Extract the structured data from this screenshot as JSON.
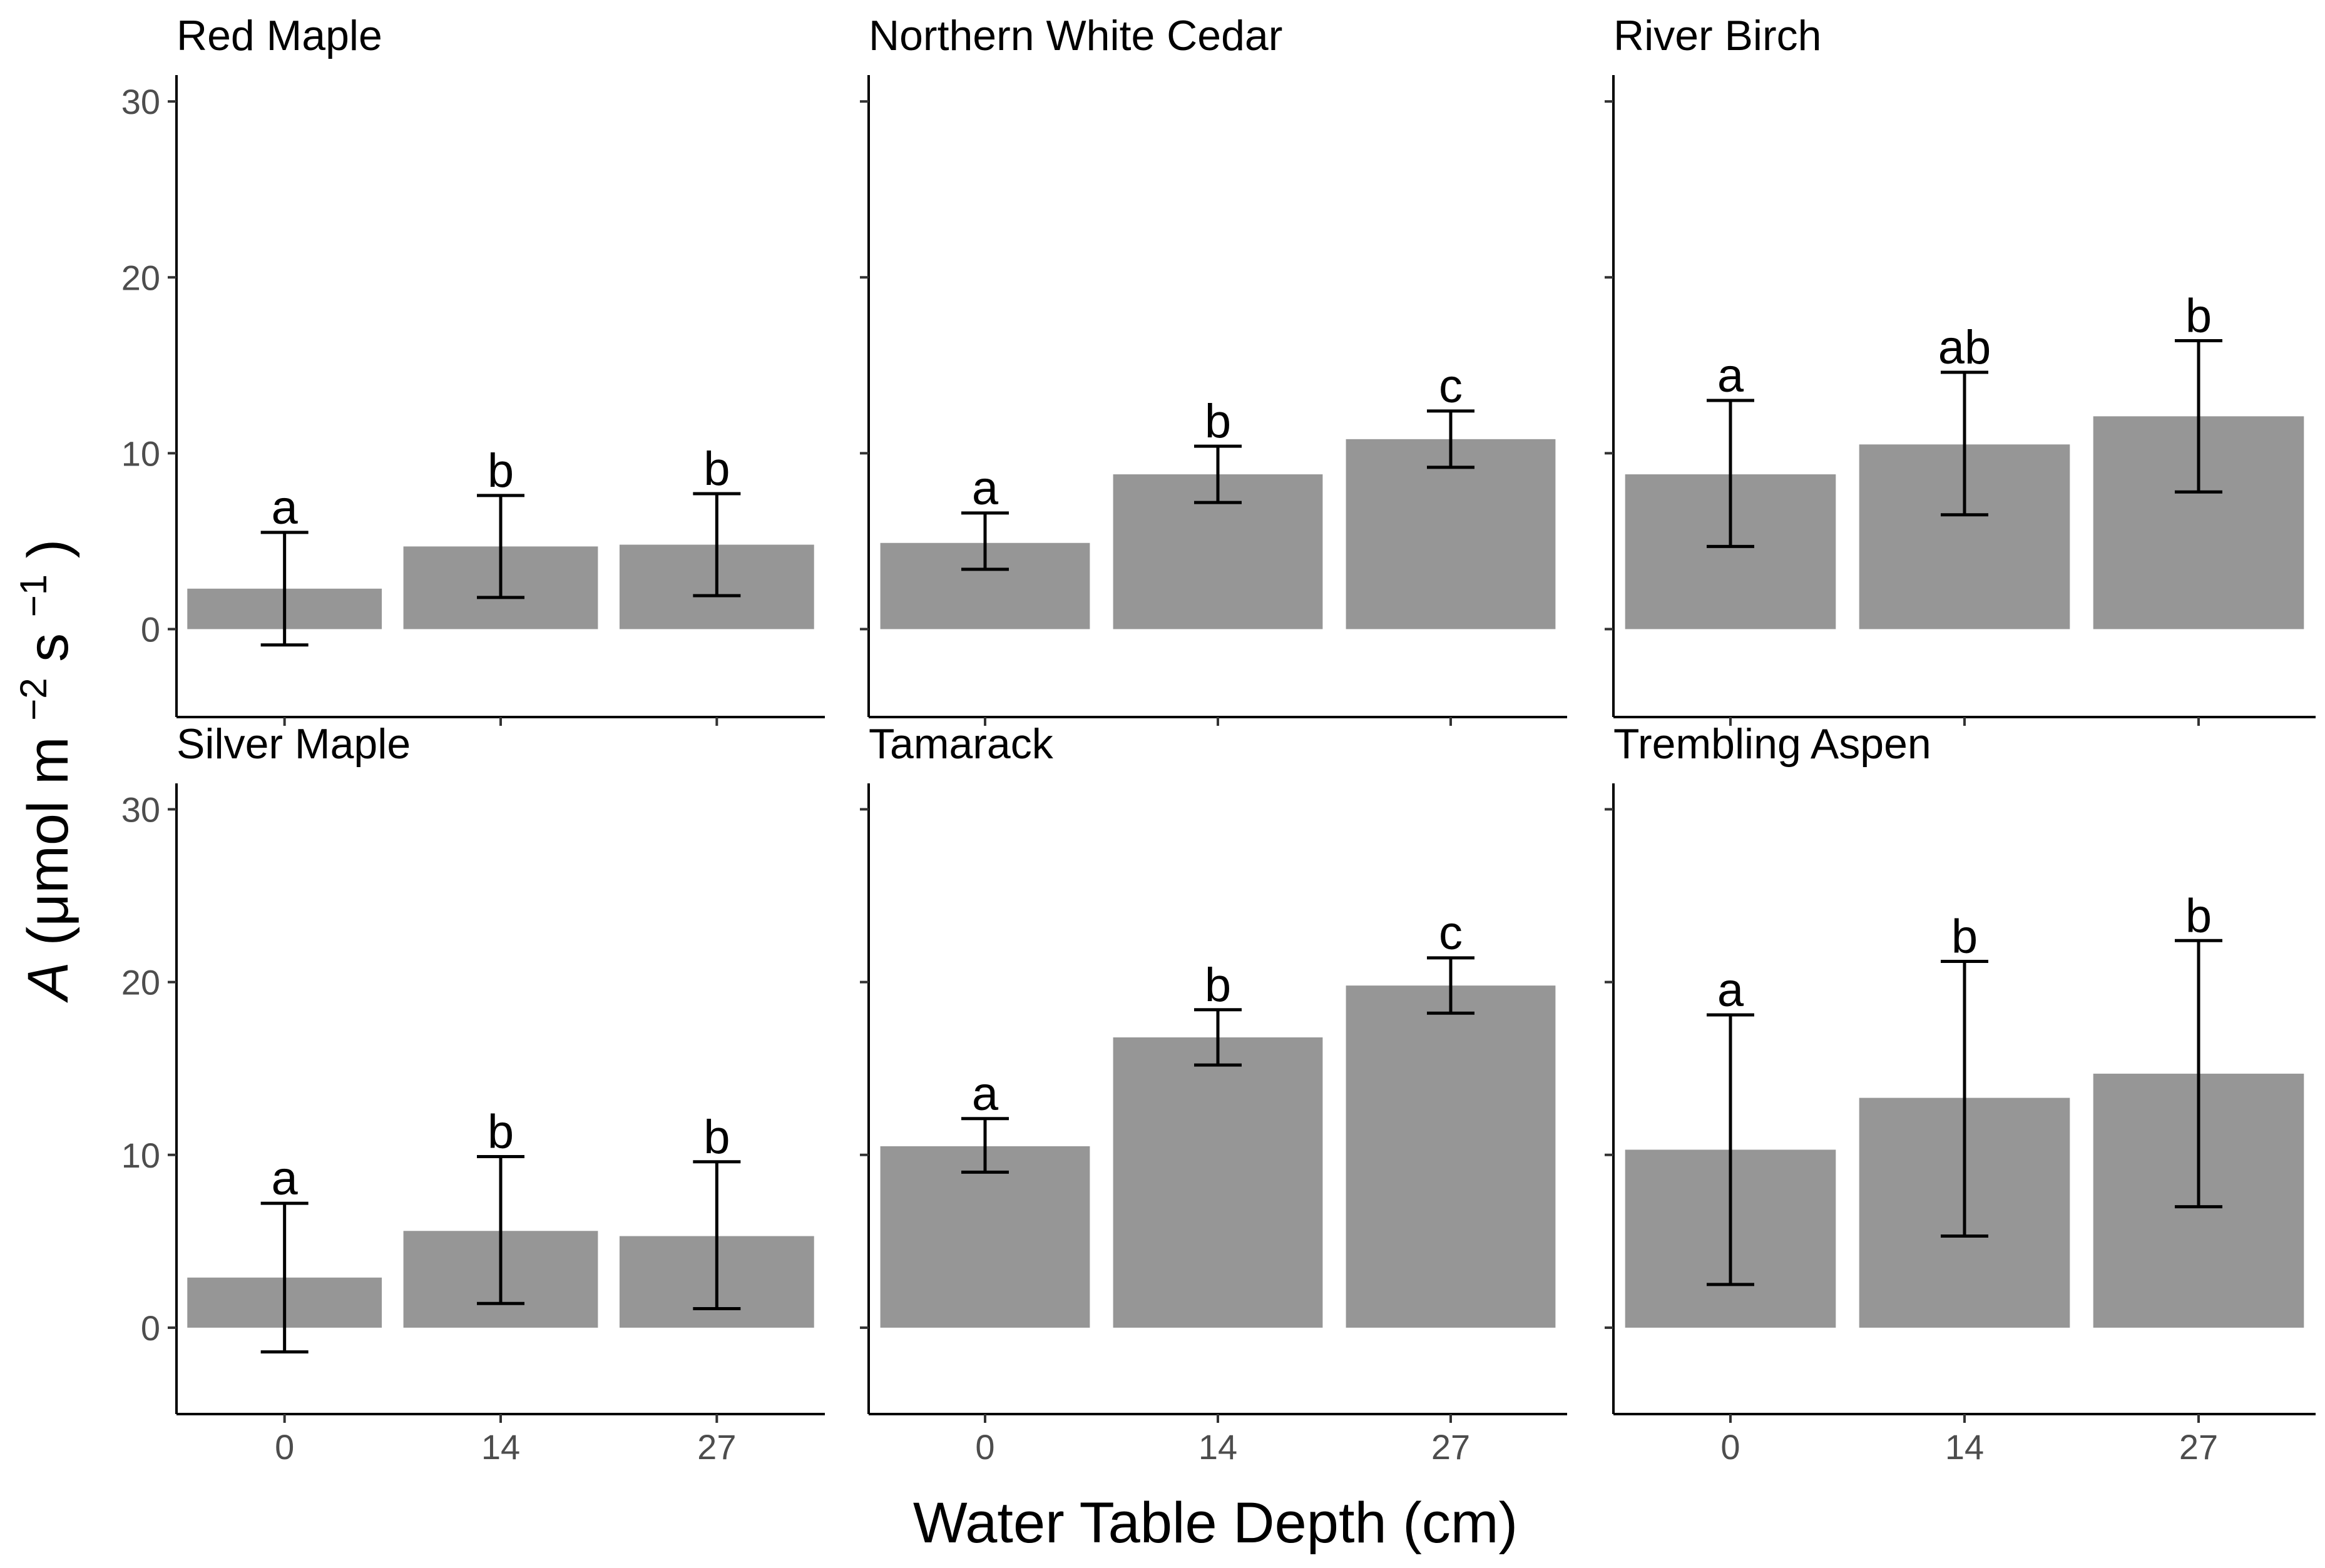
{
  "chart_data": {
    "type": "bar",
    "layout": "facet-grid-2x3",
    "xlabel": "Water Table Depth (cm)",
    "ylabel_parts": {
      "italic": "A",
      "unit": "(μmol m",
      "sup1": "−2",
      "mid": " s",
      "sup2": "−1",
      "close": ")"
    },
    "categories": [
      "0",
      "14",
      "27"
    ],
    "ylim": [
      -5,
      31.5
    ],
    "yticks": [
      0,
      10,
      20,
      30
    ],
    "panels": [
      {
        "title": "Red Maple",
        "row": 0,
        "col": 0,
        "values": [
          2.3,
          4.7,
          4.8
        ],
        "err_low": [
          -0.9,
          1.8,
          1.9
        ],
        "err_high": [
          5.5,
          7.6,
          7.7
        ],
        "letters": [
          "a",
          "b",
          "b"
        ]
      },
      {
        "title": "Northern White Cedar",
        "row": 0,
        "col": 1,
        "values": [
          4.9,
          8.8,
          10.8
        ],
        "err_low": [
          3.4,
          7.2,
          9.2
        ],
        "err_high": [
          6.6,
          10.4,
          12.4
        ],
        "letters": [
          "a",
          "b",
          "c"
        ]
      },
      {
        "title": "River Birch",
        "row": 0,
        "col": 2,
        "values": [
          8.8,
          10.5,
          12.1
        ],
        "err_low": [
          4.7,
          6.5,
          7.8
        ],
        "err_high": [
          13.0,
          14.6,
          16.4
        ],
        "letters": [
          "a",
          "ab",
          "b"
        ]
      },
      {
        "title": "Silver Maple",
        "row": 1,
        "col": 0,
        "values": [
          2.9,
          5.6,
          5.3
        ],
        "err_low": [
          -1.4,
          1.4,
          1.1
        ],
        "err_high": [
          7.2,
          9.9,
          9.6
        ],
        "letters": [
          "a",
          "b",
          "b"
        ]
      },
      {
        "title": "Tamarack",
        "row": 1,
        "col": 1,
        "values": [
          10.5,
          16.8,
          19.8
        ],
        "err_low": [
          9.0,
          15.2,
          18.2
        ],
        "err_high": [
          12.1,
          18.4,
          21.4
        ],
        "letters": [
          "a",
          "b",
          "c"
        ]
      },
      {
        "title": "Trembling Aspen",
        "row": 1,
        "col": 2,
        "values": [
          10.3,
          13.3,
          14.7
        ],
        "err_low": [
          2.5,
          5.3,
          7.0
        ],
        "err_high": [
          18.1,
          21.2,
          22.4
        ],
        "letters": [
          "a",
          "b",
          "b"
        ]
      }
    ]
  }
}
